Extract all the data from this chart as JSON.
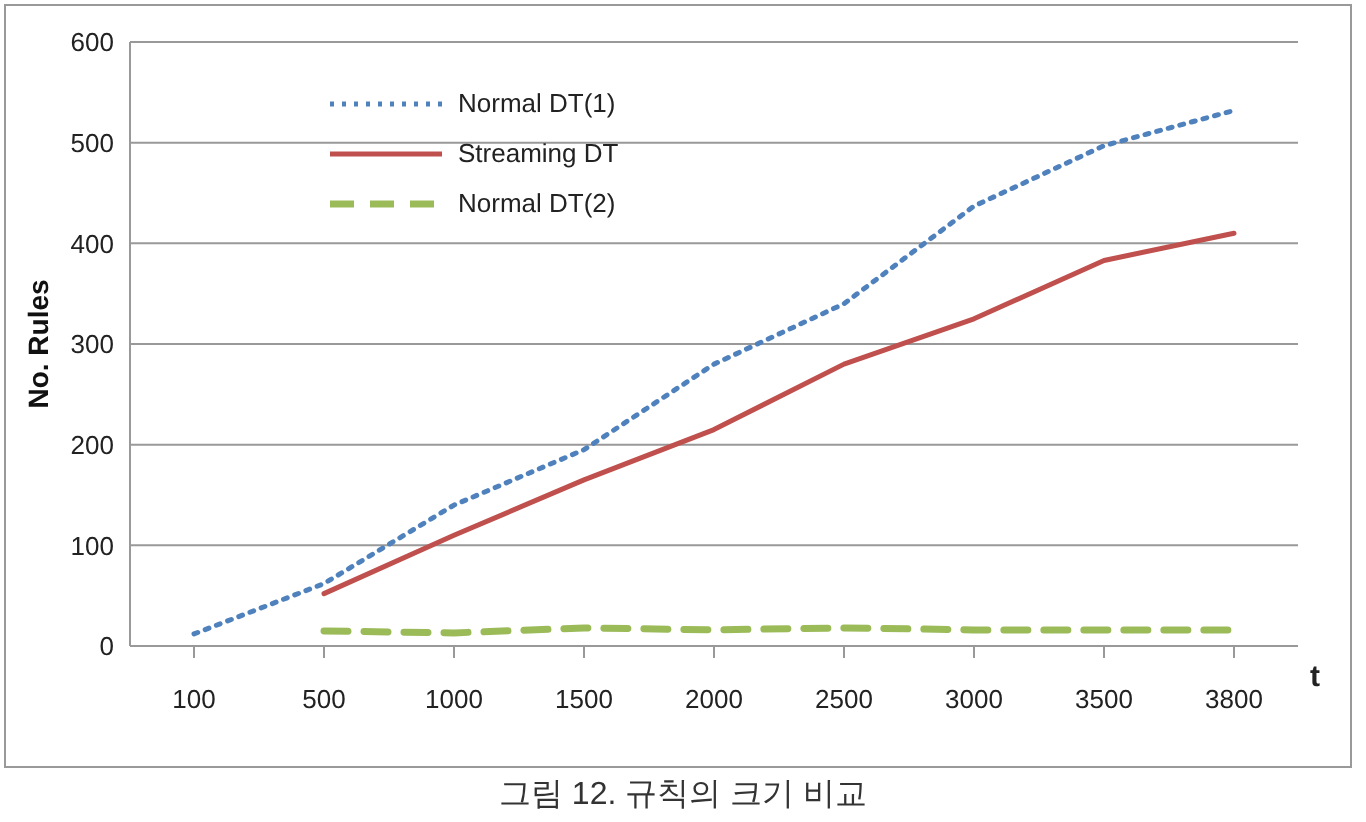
{
  "chart_data": {
    "type": "line",
    "xlabel": "t",
    "ylabel": "No. Rules",
    "categories": [
      "100",
      "500",
      "1000",
      "1500",
      "2000",
      "2500",
      "3000",
      "3500",
      "3800"
    ],
    "series": [
      {
        "name": "Normal DT(1)",
        "color": "#4f81bd",
        "line_style": "dotted",
        "values": [
          12,
          62,
          140,
          195,
          280,
          340,
          437,
          497,
          532
        ]
      },
      {
        "name": "Streaming DT",
        "color": "#c0504d",
        "line_style": "solid",
        "values": [
          null,
          52,
          110,
          165,
          215,
          280,
          325,
          383,
          410
        ]
      },
      {
        "name": "Normal DT(2)",
        "color": "#9bbb59",
        "line_style": "dashed",
        "values": [
          null,
          15,
          13,
          18,
          16,
          18,
          16,
          16,
          16
        ]
      }
    ],
    "ylim": [
      0,
      600
    ],
    "yticks": [
      0,
      100,
      200,
      300,
      400,
      500,
      600
    ],
    "grid": "y",
    "legend": "top left",
    "marker": "none",
    "annotations": [
      "그림 12. 규칙의 크기 비교"
    ]
  }
}
